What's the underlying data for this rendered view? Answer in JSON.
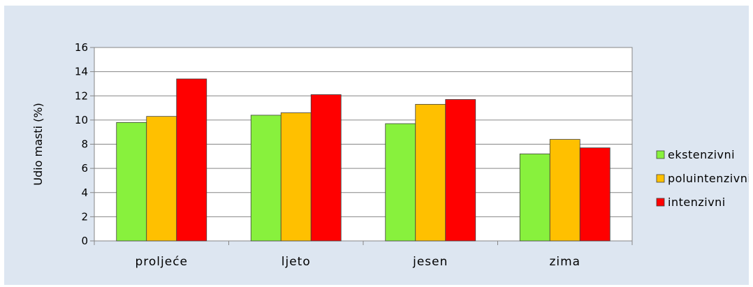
{
  "chart_data": {
    "type": "bar",
    "ylabel": "Udio masti  (%)",
    "ylim": [
      0,
      16
    ],
    "yticks": [
      0,
      2,
      4,
      6,
      8,
      10,
      12,
      14,
      16
    ],
    "categories": [
      "proljeće",
      "ljeto",
      "jesen",
      "zima"
    ],
    "series": [
      {
        "name": "ekstenzivni",
        "color": "#88f13d",
        "values": [
          9.8,
          10.4,
          9.7,
          7.2
        ]
      },
      {
        "name": "poluintenzivni",
        "color": "#ffc000",
        "values": [
          10.3,
          10.6,
          11.3,
          8.4
        ]
      },
      {
        "name": "intenzivni",
        "color": "#ff0000",
        "values": [
          13.4,
          12.1,
          11.7,
          7.7
        ]
      }
    ],
    "grid": true,
    "legend": "right"
  }
}
